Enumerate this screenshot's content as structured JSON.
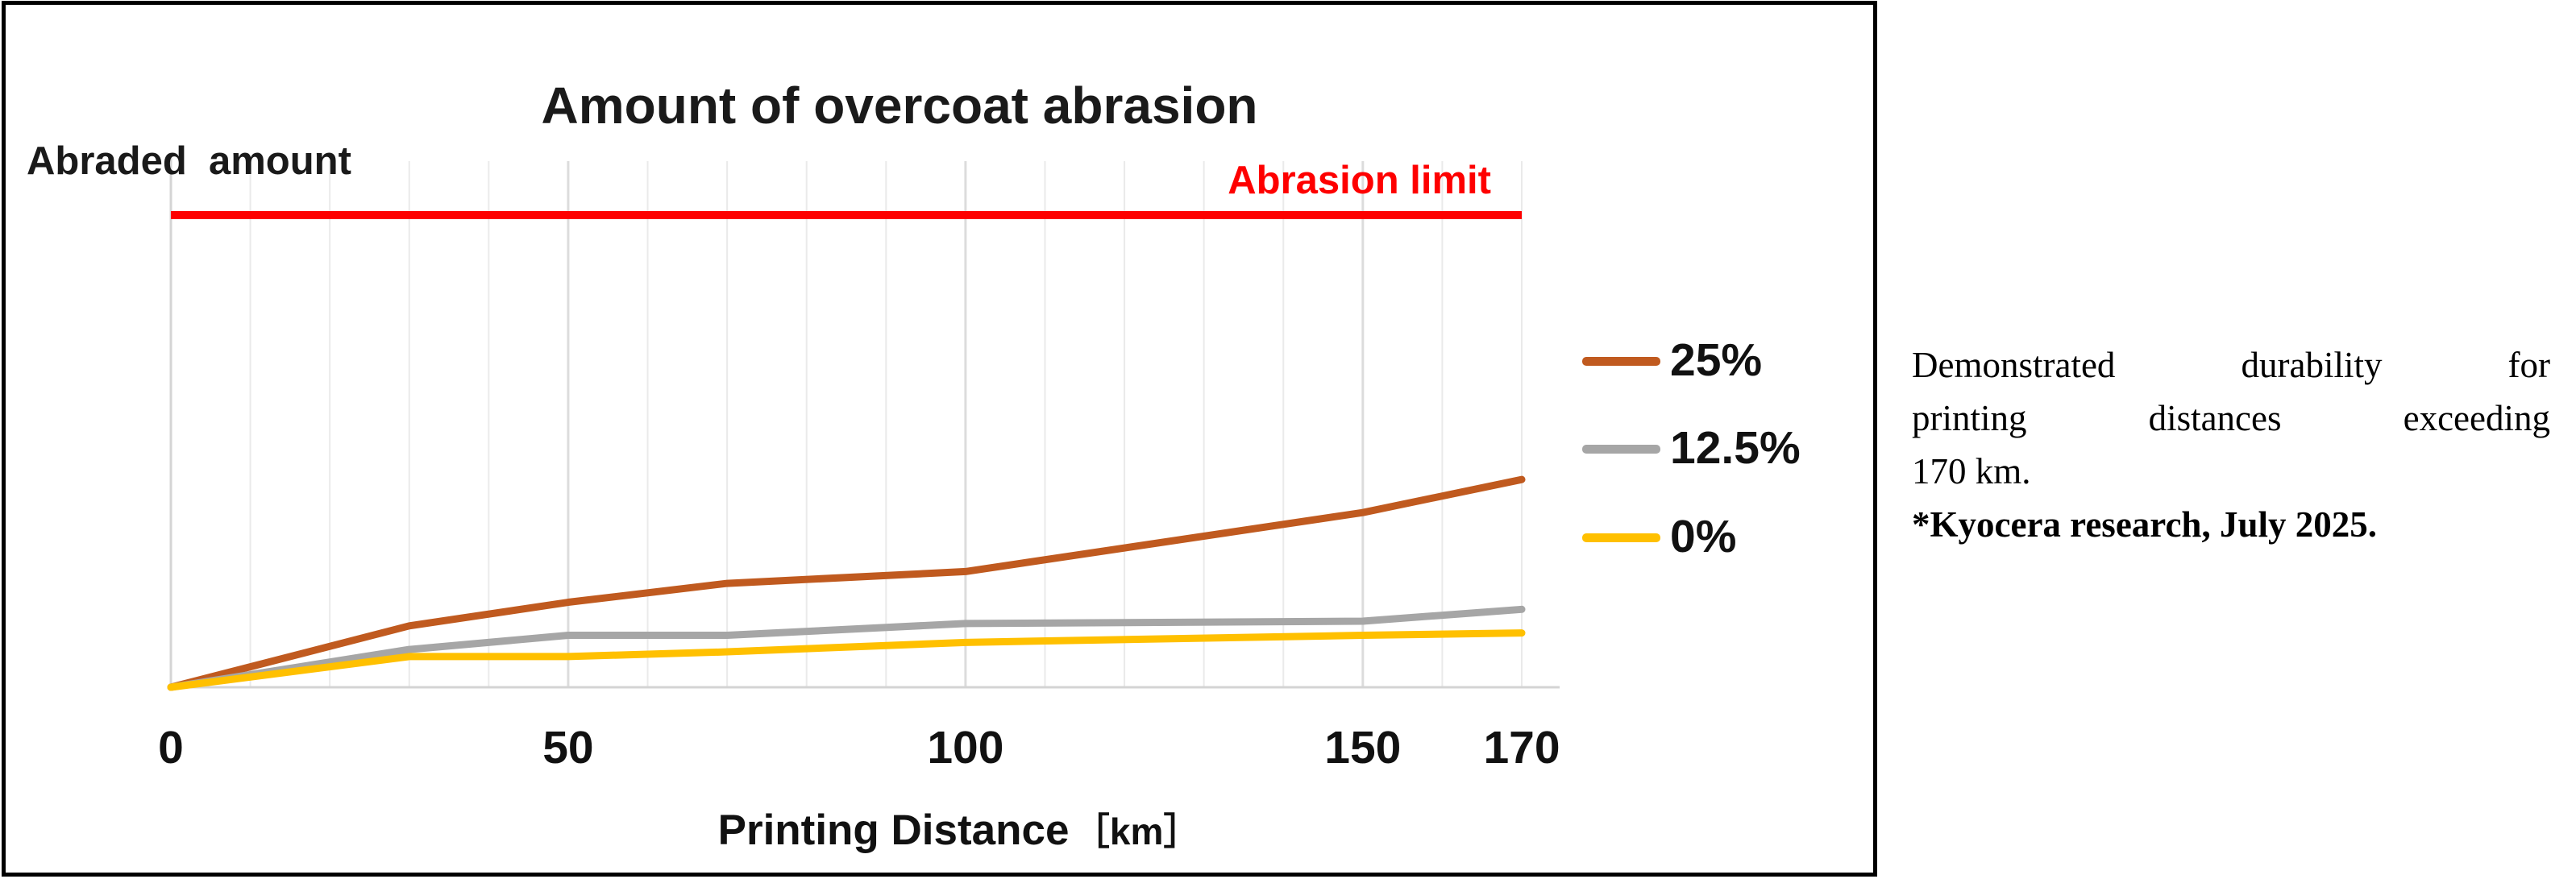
{
  "title": "Amount of overcoat abrasion",
  "y_axis_label": "Abraded  amount",
  "x_axis_label": "Printing Distance",
  "x_axis_unit": "［km］",
  "abrasion_limit_label": "Abrasion limit",
  "legend": [
    {
      "label": "25%",
      "color": "#c05a1f"
    },
    {
      "label": "12.5%",
      "color": "#a6a6a6"
    },
    {
      "label": "0%",
      "color": "#ffc000"
    }
  ],
  "side_note": {
    "lines": [
      "Demonstrated durability for",
      "printing distances exceeding",
      "170 km.",
      "*Kyocera research, July 2025."
    ]
  },
  "colors": {
    "limit": "#fe0000",
    "axis": "#d4d4d4",
    "grid_minor": "#eaeaea",
    "grid_major": "#dcdcdc",
    "title_text": "#1a1a1a"
  },
  "chart_data": {
    "type": "line",
    "title": "Amount of overcoat abrasion",
    "xlabel": "Printing Distance [km]",
    "ylabel": "Abraded amount",
    "x_range": [
      0,
      170
    ],
    "x_ticks": [
      0,
      50,
      100,
      150,
      170
    ],
    "grid": "vertical gridlines every 10 km, no horizontal gridlines",
    "legend_position": "right of plot",
    "y_scale_note": "y axis has no tick labels; values are relative units where the abrasion limit line = 100 and baseline = 0",
    "abrasion_limit": {
      "label": "Abrasion limit",
      "value": 100,
      "color": "#fe0000"
    },
    "series": [
      {
        "name": "25%",
        "color": "#c05a1f",
        "points": [
          [
            0,
            0
          ],
          [
            30,
            13
          ],
          [
            50,
            18
          ],
          [
            70,
            22
          ],
          [
            100,
            24.5
          ],
          [
            150,
            37
          ],
          [
            170,
            44
          ]
        ]
      },
      {
        "name": "12.5%",
        "color": "#a6a6a6",
        "points": [
          [
            0,
            0
          ],
          [
            30,
            8
          ],
          [
            50,
            11
          ],
          [
            70,
            11
          ],
          [
            100,
            13.5
          ],
          [
            150,
            14
          ],
          [
            170,
            16.5
          ]
        ]
      },
      {
        "name": "0%",
        "color": "#ffc000",
        "points": [
          [
            0,
            0
          ],
          [
            30,
            6.5
          ],
          [
            50,
            6.5
          ],
          [
            70,
            7.5
          ],
          [
            100,
            9.5
          ],
          [
            150,
            11
          ],
          [
            170,
            11.5
          ]
        ]
      }
    ]
  }
}
